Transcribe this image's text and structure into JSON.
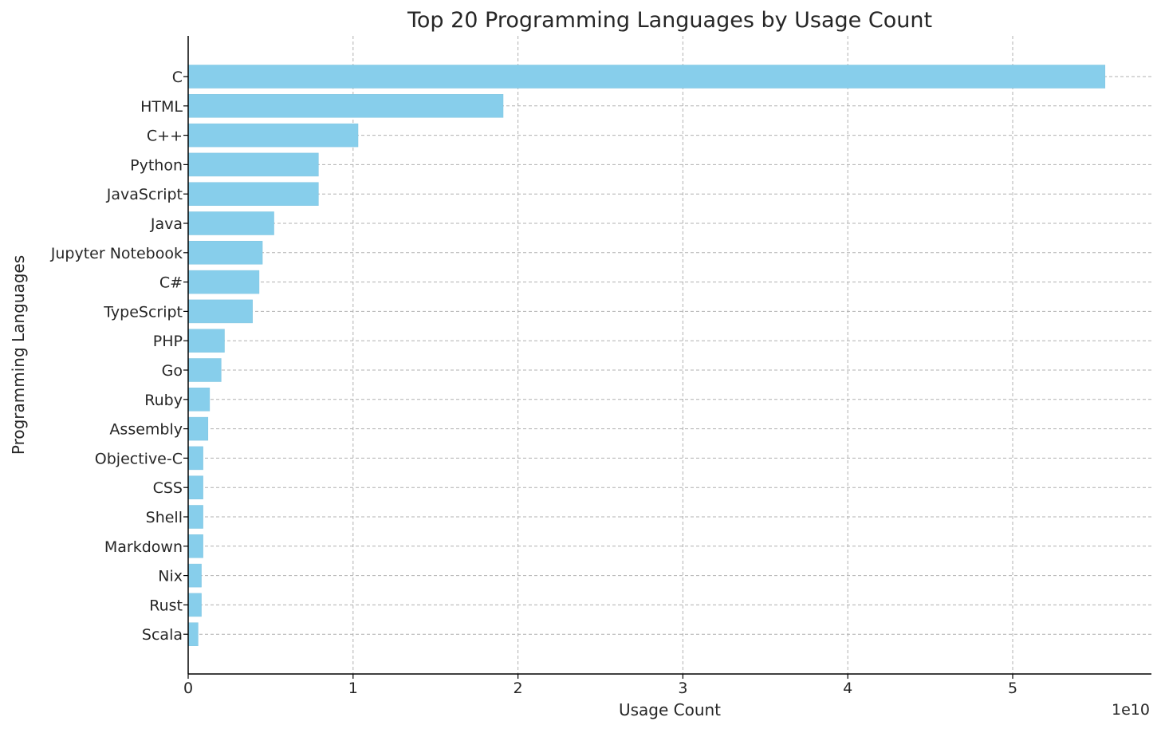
{
  "chart_data": {
    "type": "bar",
    "orientation": "horizontal",
    "title": "Top 20 Programming Languages by Usage Count",
    "xlabel": "Usage Count",
    "ylabel": "Programming Languages",
    "x_offset_label": "1e10",
    "x_scale": 10000000000,
    "xlim": [
      0,
      5.83
    ],
    "xticks": [
      0,
      1,
      2,
      3,
      4,
      5
    ],
    "grid": true,
    "legend": "none",
    "bar_color": "#87CEEB",
    "categories": [
      "C",
      "HTML",
      "C++",
      "Python",
      "JavaScript",
      "Java",
      "Jupyter Notebook",
      "C#",
      "TypeScript",
      "PHP",
      "Go",
      "Ruby",
      "Assembly",
      "Objective-C",
      "CSS",
      "Shell",
      "Markdown",
      "Nix",
      "Rust",
      "Scala"
    ],
    "values": [
      5.56,
      1.91,
      1.03,
      0.79,
      0.79,
      0.52,
      0.45,
      0.43,
      0.39,
      0.22,
      0.2,
      0.13,
      0.12,
      0.09,
      0.09,
      0.09,
      0.09,
      0.08,
      0.08,
      0.06
    ]
  }
}
